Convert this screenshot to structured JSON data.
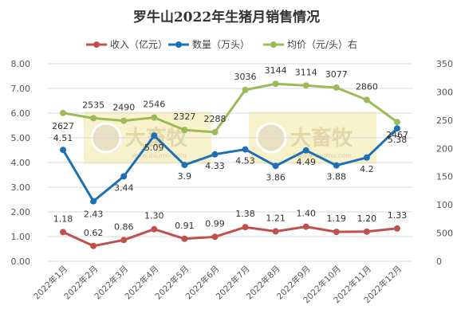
{
  "chart_data": {
    "type": "line",
    "title": "罗牛山2022年生猪月销售情况",
    "categories": [
      "2022年1月",
      "2022年2月",
      "2022年3月",
      "2022年4月",
      "2022年5月",
      "2022年6月",
      "2022年7月",
      "2022年8月",
      "2022年9月",
      "2022年10月",
      "2022年11月",
      "2022年12月"
    ],
    "series": [
      {
        "name": "收入（亿元）",
        "axis": "left",
        "color": "#c0504d",
        "values": [
          1.18,
          0.62,
          0.86,
          1.3,
          0.91,
          0.99,
          1.38,
          1.21,
          1.4,
          1.19,
          1.2,
          1.33
        ],
        "labels": [
          "1.18",
          "0.62",
          "0.86",
          "1.30",
          "0.91",
          "0.99",
          "1.38",
          "1.21",
          "1.40",
          "1.19",
          "1.20",
          "1.33"
        ]
      },
      {
        "name": "数量（万头）",
        "axis": "left",
        "color": "#1f6fb5",
        "values": [
          4.51,
          2.43,
          3.44,
          5.09,
          3.9,
          4.33,
          4.53,
          3.86,
          4.49,
          3.88,
          4.2,
          5.38
        ],
        "labels": [
          "4.51",
          "2.43",
          "3.44",
          "5.09",
          "3.9",
          "4.33",
          "4.53",
          "3.86",
          "4.49",
          "3.88",
          "4.2",
          "5.38"
        ]
      },
      {
        "name": "均价（元/头）右",
        "axis": "right",
        "color": "#9bbb59",
        "values": [
          2627,
          2535,
          2490,
          2546,
          2327,
          2288,
          3036,
          3144,
          3114,
          3077,
          2860,
          2467
        ],
        "labels": [
          "2627",
          "2535",
          "2490",
          "2546",
          "2327",
          "2288",
          "3036",
          "3144",
          "3114",
          "3077",
          "2860",
          "2467"
        ]
      }
    ],
    "y_left": {
      "min": 0,
      "max": 8,
      "ticks": [
        0,
        1,
        2,
        3,
        4,
        5,
        6,
        7,
        8
      ],
      "tick_labels": [
        "0.00",
        "1.00",
        "2.00",
        "3.00",
        "4.00",
        "5.00",
        "6.00",
        "7.00",
        "8.00"
      ]
    },
    "y_right": {
      "min": 0,
      "max": 3500,
      "ticks": [
        0,
        500,
        1000,
        1500,
        2000,
        2500,
        3000,
        3500
      ],
      "tick_labels": [
        "0",
        "500",
        "1000",
        "1500",
        "2000",
        "2500",
        "3000",
        "3500"
      ]
    },
    "grid": true,
    "legend_position": "top",
    "watermark_text": "大畜牧",
    "watermark_subtext": "www.daumu.com"
  }
}
